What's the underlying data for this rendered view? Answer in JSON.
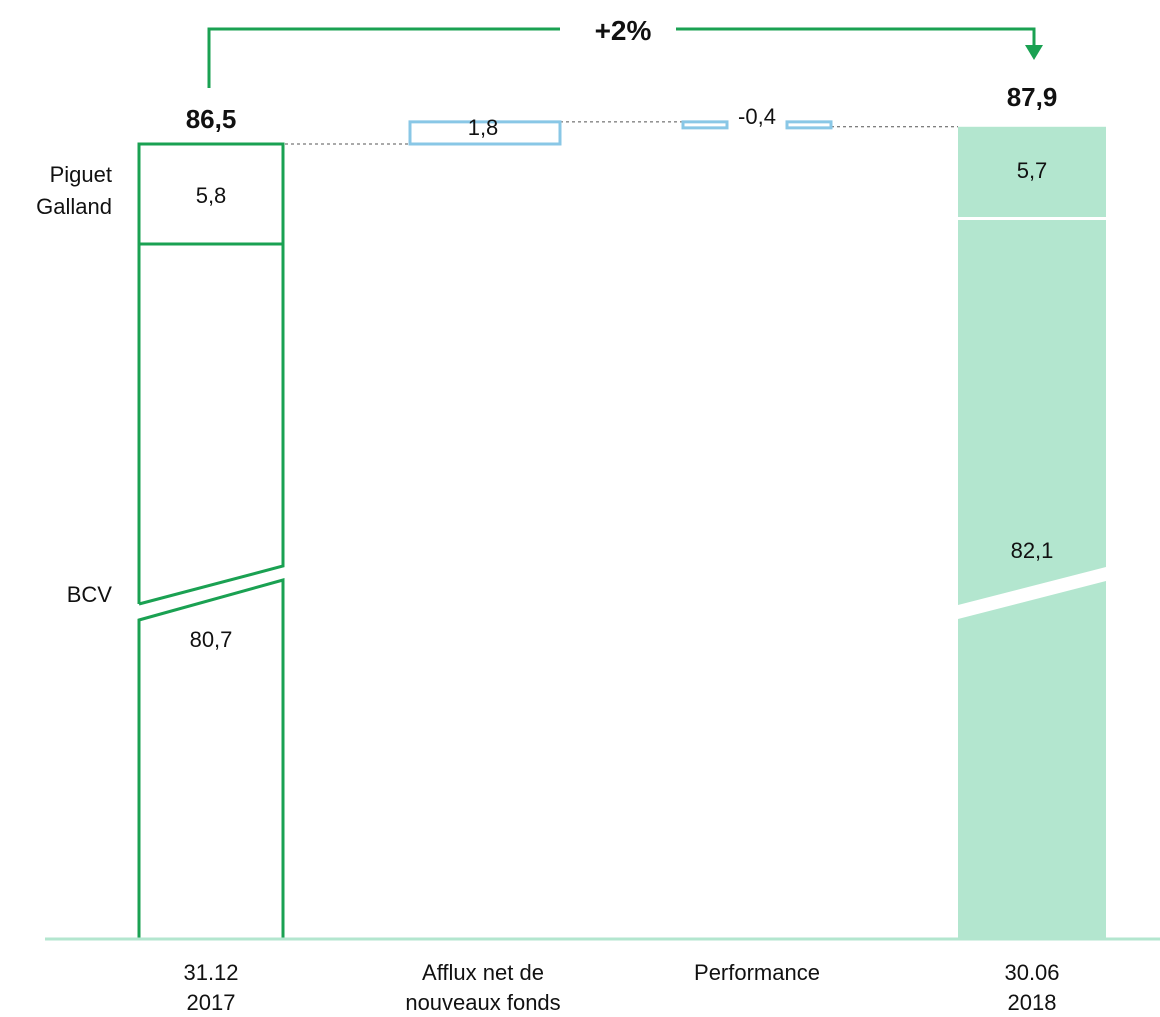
{
  "chart_data": {
    "type": "bar",
    "subtype": "waterfall",
    "categories": [
      "31.12\n2017",
      "Afflux net de\nnouveaux fonds",
      "Performance",
      "30.06\n2018"
    ],
    "series": [
      {
        "name": "Piguet Galland",
        "values": [
          5.8,
          null,
          null,
          5.7
        ]
      },
      {
        "name": "BCV",
        "values": [
          80.7,
          null,
          null,
          82.1
        ]
      }
    ],
    "changes": [
      {
        "category": "Afflux net de\nnouveaux fonds",
        "value": 1.8,
        "label": "1,8"
      },
      {
        "category": "Performance",
        "value": -0.4,
        "label": "-0,4"
      }
    ],
    "totals": [
      {
        "category": "31.12\n2017",
        "value": 86.5,
        "label": "86,5"
      },
      {
        "category": "30.06\n2018",
        "value": 87.9,
        "label": "87,9"
      }
    ],
    "segment_labels": {
      "start_piguet": "5,8",
      "start_bcv": "80,7",
      "end_piguet": "5,7",
      "end_bcv": "82,1"
    },
    "legend_labels": {
      "piguet": [
        "Piguet",
        "Galland"
      ],
      "bcv": "BCV"
    },
    "growth_label": "+2%",
    "axis_break": true,
    "colors": {
      "start_outline": "#1aa152",
      "end_fill": "#b3e6cf",
      "change_outline": "#89c7e6",
      "axis_line": "#b3e6cf",
      "arrow": "#1aa152",
      "connector": "#555555"
    }
  }
}
